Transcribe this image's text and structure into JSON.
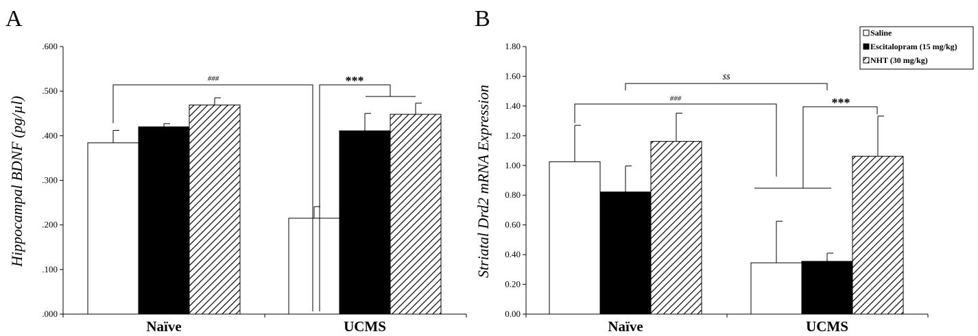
{
  "colors": {
    "saline": "#ffffff",
    "escitalopram": "#000000",
    "nht": "hatched",
    "stroke": "#000000"
  },
  "legend": [
    {
      "label": "Saline",
      "fill": "saline"
    },
    {
      "label": "Escitalopram (15 mg/kg)",
      "fill": "escitalopram"
    },
    {
      "label": "NHT (30 mg/kg)",
      "fill": "nht"
    }
  ],
  "chart_data": [
    {
      "type": "bar",
      "panel_label": "A",
      "ylabel": "Hippocampal BDNF (pg/µl)",
      "categories": [
        "Naïve",
        "UCMS"
      ],
      "ylim": [
        0,
        0.6
      ],
      "yticks": [
        ".000",
        ".100",
        ".200",
        ".300",
        ".400",
        ".500",
        ".600"
      ],
      "ytick_values": [
        0,
        0.1,
        0.2,
        0.3,
        0.4,
        0.5,
        0.6
      ],
      "series": [
        {
          "name": "Saline",
          "fill": "saline",
          "values": [
            0.384,
            0.215
          ],
          "errors": [
            0.028,
            0.026
          ]
        },
        {
          "name": "Escitalopram (15 mg/kg)",
          "fill": "escitalopram",
          "values": [
            0.42,
            0.411
          ],
          "errors": [
            0.007,
            0.039
          ]
        },
        {
          "name": "NHT (30 mg/kg)",
          "fill": "nht",
          "values": [
            0.469,
            0.448
          ],
          "errors": [
            0.016,
            0.025
          ]
        }
      ],
      "annotations": [
        {
          "text": "###",
          "kind": "small"
        },
        {
          "text": "***",
          "kind": "large"
        }
      ]
    },
    {
      "type": "bar",
      "panel_label": "B",
      "ylabel": "Striatal Drd2 mRNA Expression",
      "categories": [
        "Naïve",
        "UCMS"
      ],
      "ylim": [
        0,
        1.8
      ],
      "yticks": [
        "0.00",
        "0.20",
        "0.40",
        "0.60",
        "0.80",
        "1.00",
        "1.20",
        "1.40",
        "1.60",
        "1.80"
      ],
      "ytick_values": [
        0,
        0.2,
        0.4,
        0.6,
        0.8,
        1.0,
        1.2,
        1.4,
        1.6,
        1.8
      ],
      "series": [
        {
          "name": "Saline",
          "fill": "saline",
          "values": [
            1.025,
            0.345
          ],
          "errors": [
            0.245,
            0.28
          ]
        },
        {
          "name": "Escitalopram (15 mg/kg)",
          "fill": "escitalopram",
          "values": [
            0.822,
            0.355
          ],
          "errors": [
            0.175,
            0.055
          ]
        },
        {
          "name": "NHT (30 mg/kg)",
          "fill": "nht",
          "values": [
            1.162,
            1.062
          ],
          "errors": [
            0.19,
            0.27
          ]
        }
      ],
      "annotations": [
        {
          "text": "$$",
          "kind": "small"
        },
        {
          "text": "###",
          "kind": "small"
        },
        {
          "text": "***",
          "kind": "large"
        }
      ]
    }
  ]
}
